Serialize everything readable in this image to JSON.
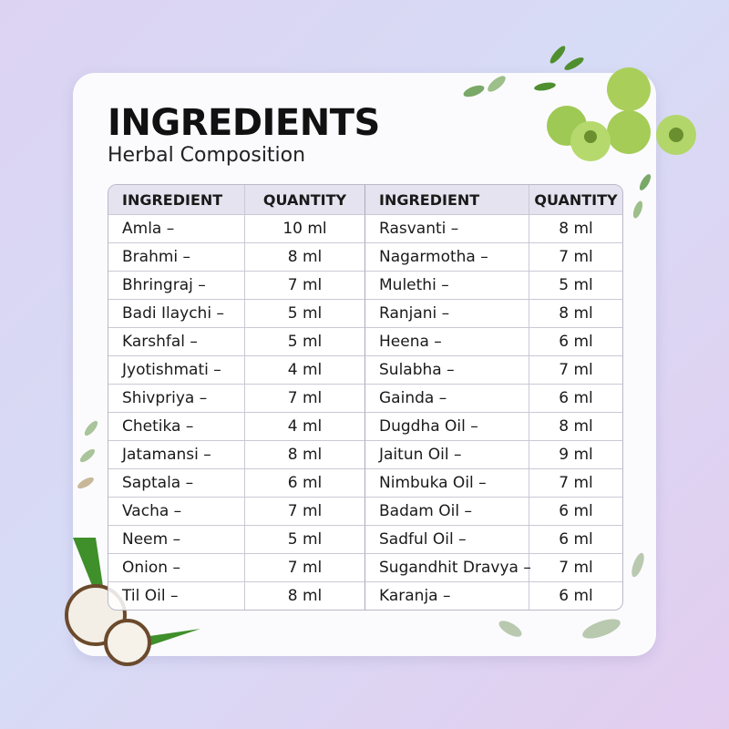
{
  "header": {
    "title": "INGREDIENTS",
    "subtitle": "Herbal Composition"
  },
  "table": {
    "columns": [
      "INGREDIENT",
      "QUANTITY",
      "INGREDIENT",
      "QUANTITY"
    ],
    "rows": [
      [
        "Amla –",
        "10 ml",
        "Rasvanti –",
        "8 ml"
      ],
      [
        "Brahmi –",
        "8 ml",
        "Nagarmotha –",
        "7 ml"
      ],
      [
        "Bhringraj –",
        "7 ml",
        "Mulethi –",
        "5 ml"
      ],
      [
        "Badi Ilaychi –",
        "5 ml",
        "Ranjani –",
        "8 ml"
      ],
      [
        "Karshfal –",
        "5 ml",
        "Heena –",
        "6 ml"
      ],
      [
        "Jyotishmati –",
        "4 ml",
        "Sulabha –",
        "7 ml"
      ],
      [
        "Shivpriya –",
        "7 ml",
        "Gainda –",
        "6 ml"
      ],
      [
        "Chetika –",
        "4 ml",
        "Dugdha Oil –",
        "8 ml"
      ],
      [
        "Jatamansi –",
        "8 ml",
        "Jaitun Oil –",
        "9 ml"
      ],
      [
        "Saptala –",
        "6 ml",
        "Nimbuka Oil –",
        "7 ml"
      ],
      [
        "Vacha –",
        "7 ml",
        "Badam Oil –",
        "6 ml"
      ],
      [
        "Neem –",
        "5 ml",
        "Sadful Oil –",
        "6 ml"
      ],
      [
        "Onion –",
        "7 ml",
        "Sugandhit Dravya –",
        "7 ml"
      ],
      [
        "Til Oil –",
        "8 ml",
        "Karanja –",
        "6 ml"
      ]
    ]
  }
}
